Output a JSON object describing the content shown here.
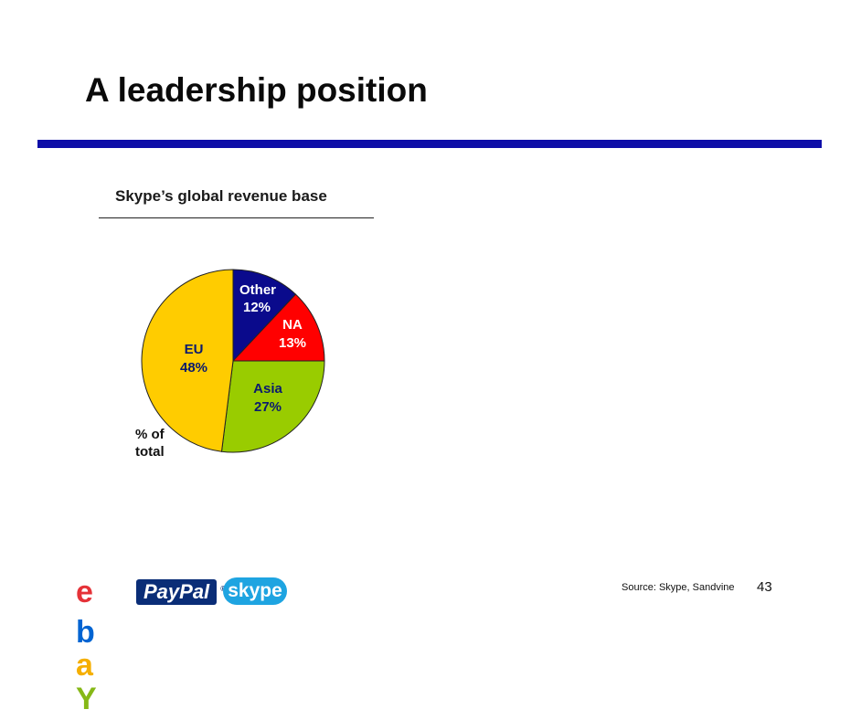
{
  "slide": {
    "title": "A leadership position",
    "subtitle": "Skype’s global revenue base",
    "unit_label_line1": "% of",
    "unit_label_line2": "total",
    "source": "Source: Skype, Sandvine",
    "page_number": "43"
  },
  "logos": {
    "ebay": [
      "e",
      "b",
      "a",
      "Y"
    ],
    "paypal": "PayPal",
    "paypal_mark": "®",
    "skype": "skype"
  },
  "colors": {
    "title_bar": "#0e0ea8",
    "ebay_e": "#e53238",
    "ebay_b": "#0064d2",
    "ebay_a": "#f5af02",
    "ebay_y": "#86b817"
  },
  "chart_data": {
    "type": "pie",
    "title": "Skype’s global revenue base",
    "unit": "% of total",
    "slices": [
      {
        "name": "Other",
        "value": 12,
        "label": "12%",
        "color": "#0a0a8c",
        "text_color": "#ffffff"
      },
      {
        "name": "NA",
        "value": 13,
        "label": "13%",
        "color": "#ff0000",
        "text_color": "#ffffff"
      },
      {
        "name": "Asia",
        "value": 27,
        "label": "27%",
        "color": "#99cc00",
        "text_color": "#0b1a6e"
      },
      {
        "name": "EU",
        "value": 48,
        "label": "48%",
        "color": "#ffcc00",
        "text_color": "#0b1a6e"
      }
    ]
  }
}
